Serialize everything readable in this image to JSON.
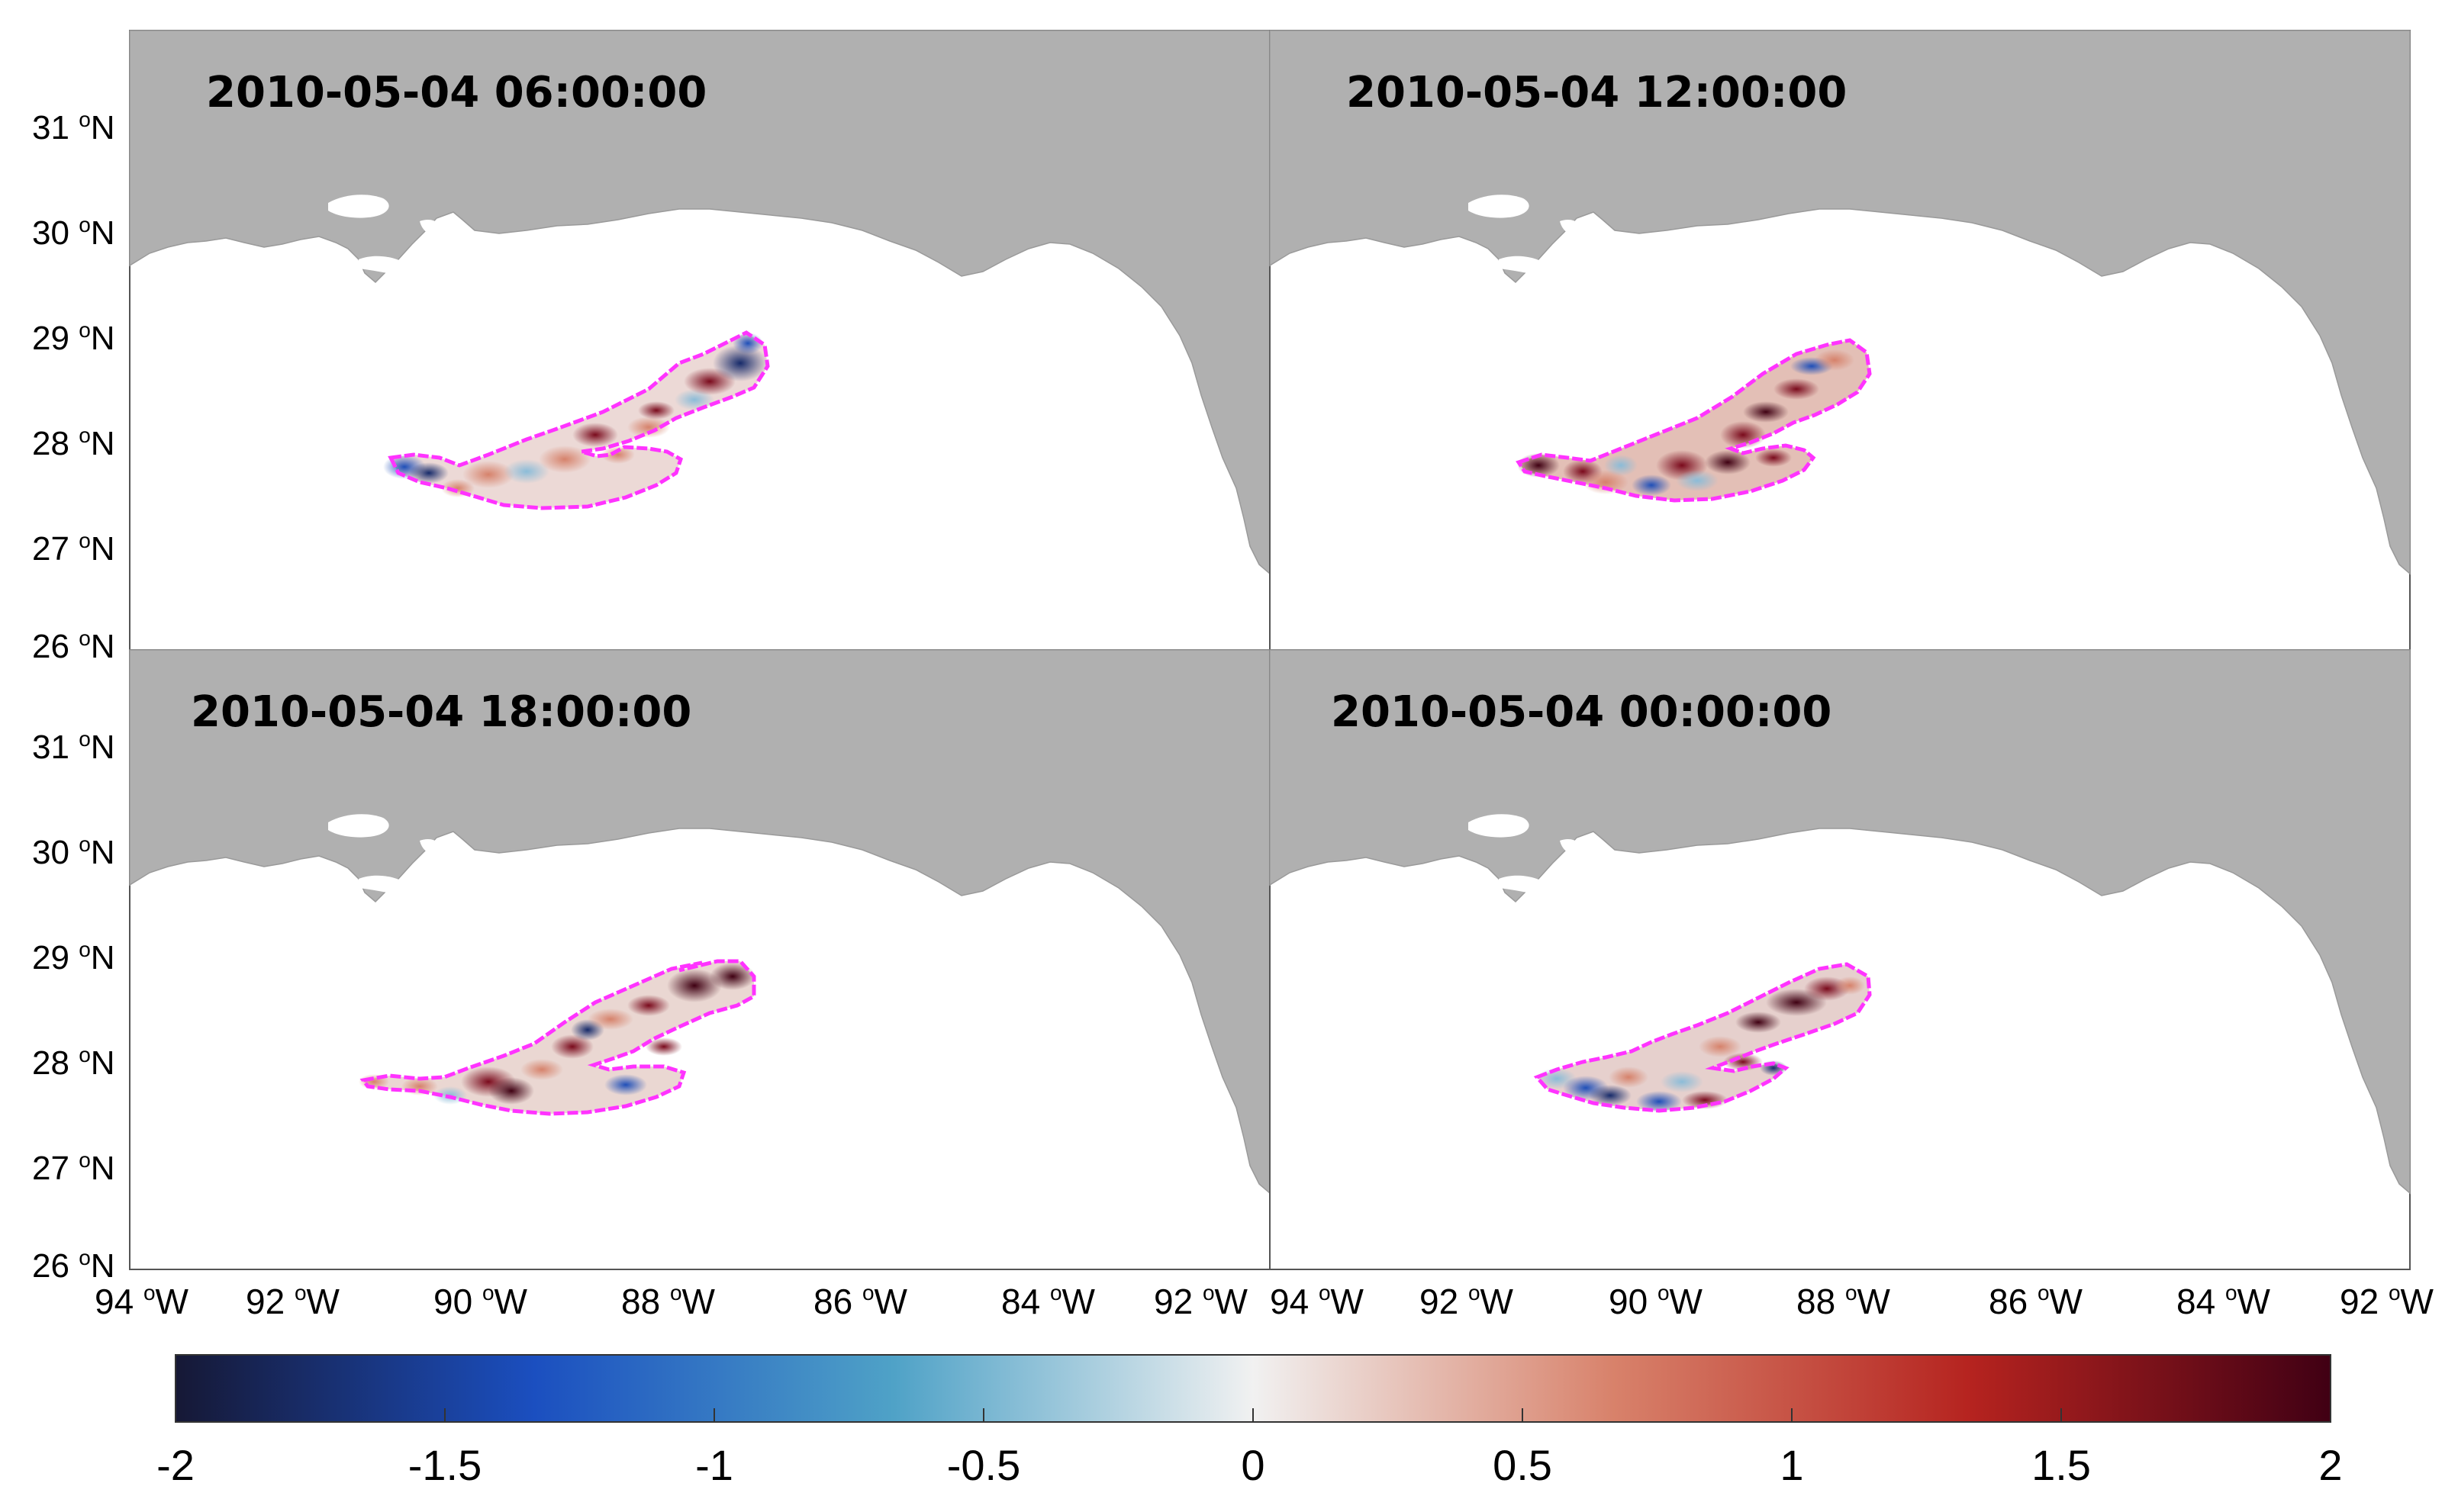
{
  "panels": [
    {
      "timestamp": "2010-05-04 06:00:00"
    },
    {
      "timestamp": "2010-05-04 12:00:00"
    },
    {
      "timestamp": "2010-05-04 18:00:00"
    },
    {
      "timestamp": "2010-05-04 00:00:00"
    }
  ],
  "lat_tick_labels": [
    {
      "deg": "31",
      "sup": "o",
      "hem": "N"
    },
    {
      "deg": "30",
      "sup": "o",
      "hem": "N"
    },
    {
      "deg": "29",
      "sup": "o",
      "hem": "N"
    },
    {
      "deg": "28",
      "sup": "o",
      "hem": "N"
    },
    {
      "deg": "27",
      "sup": "o",
      "hem": "N"
    },
    {
      "deg": "26",
      "sup": "o",
      "hem": "N"
    }
  ],
  "lon_tick_labels_left": [
    {
      "deg": "94",
      "sup": "o",
      "hem": "W"
    },
    {
      "deg": "92",
      "sup": "o",
      "hem": "W"
    },
    {
      "deg": "90",
      "sup": "o",
      "hem": "W"
    },
    {
      "deg": "88",
      "sup": "o",
      "hem": "W"
    },
    {
      "deg": "86",
      "sup": "o",
      "hem": "W"
    },
    {
      "deg": "84",
      "sup": "o",
      "hem": "W"
    },
    {
      "deg": "92",
      "sup": "o",
      "hem": "W"
    }
  ],
  "lon_tick_labels_right": [
    {
      "deg": "94",
      "sup": "o",
      "hem": "W"
    },
    {
      "deg": "92",
      "sup": "o",
      "hem": "W"
    },
    {
      "deg": "90",
      "sup": "o",
      "hem": "W"
    },
    {
      "deg": "88",
      "sup": "o",
      "hem": "W"
    },
    {
      "deg": "86",
      "sup": "o",
      "hem": "W"
    },
    {
      "deg": "84",
      "sup": "o",
      "hem": "W"
    },
    {
      "deg": "92",
      "sup": "o",
      "hem": "W"
    }
  ],
  "colorbar": {
    "min": -2,
    "max": 2,
    "tick_labels": [
      "-2",
      "-1.5",
      "-1",
      "-0.5",
      "0",
      "0.5",
      "1",
      "1.5",
      "2"
    ],
    "colors": [
      "#161835",
      "#1b4fc0",
      "#4fa2c7",
      "#f1f1f1",
      "#d8826b",
      "#b5231f",
      "#400014"
    ]
  },
  "colors": {
    "land": "#b0b0b0",
    "water": "#ffffff",
    "plume_outline": "#ff33ff"
  }
}
